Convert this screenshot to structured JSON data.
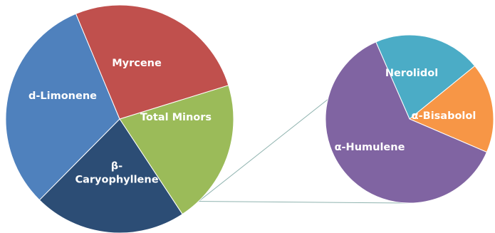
{
  "chart_data": {
    "type": "pie",
    "title": "",
    "main": {
      "slices": [
        {
          "label": "Myrcene",
          "value": 20.5,
          "color": "#9BBB59"
        },
        {
          "label": "Total Minors",
          "value": 21.7,
          "color": "#2C4D75"
        },
        {
          "label": "β-\nCaryophyllene",
          "value": 31.3,
          "color": "#4F81BD"
        },
        {
          "label": "d-Limonene",
          "value": 26.5,
          "color": "#C0504D"
        }
      ]
    },
    "breakdown": {
      "of": "Total Minors",
      "slices": [
        {
          "label": "Nerolidol",
          "value": 20.7,
          "color": "#4BACC6"
        },
        {
          "label": "α-Bisabolol",
          "value": 17.3,
          "color": "#F79646"
        },
        {
          "label": "α-Humulene",
          "value": 62.0,
          "color": "#8064A2"
        }
      ]
    },
    "connector_color": "#8FB3AF",
    "legend": "none"
  }
}
